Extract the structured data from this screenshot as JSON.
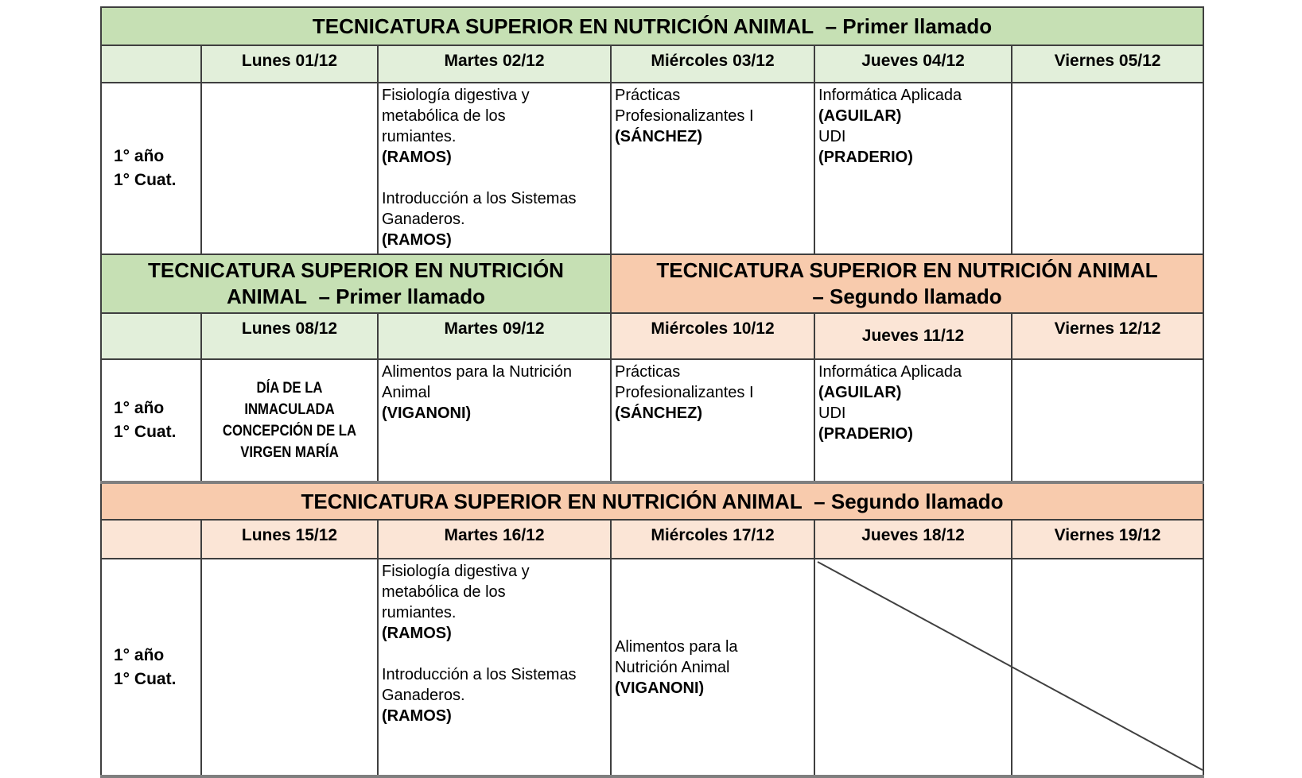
{
  "palette": {
    "page_background": "#ffffff",
    "band_green": "#c6e0b4",
    "header_green": "#e2efda",
    "band_orange": "#f8cbad",
    "header_orange": "#fbe5d6",
    "grid_border": "#3f3f3f",
    "thick_border": "#7f7f7f",
    "diagonal_line": "#404040",
    "text": "#000000"
  },
  "sections": [
    {
      "corner_tone": "green",
      "bands": [
        {
          "tone": "green",
          "span": 6,
          "lines": [
            "TECNICATURA SUPERIOR EN NUTRICIÓN ANIMAL  – Primer llamado"
          ]
        }
      ],
      "days": [
        {
          "label": "Lunes 01/12",
          "tone": "green"
        },
        {
          "label": "Martes 02/12",
          "tone": "green"
        },
        {
          "label": "Miércoles 03/12",
          "tone": "green"
        },
        {
          "label": "Jueves 04/12",
          "tone": "green"
        },
        {
          "label": "Viernes 05/12",
          "tone": "green"
        }
      ],
      "row": {
        "label_lines": [
          "1° año",
          "1° Cuat."
        ],
        "cells": [
          {
            "lines": []
          },
          {
            "lines": [
              {
                "t": "Fisiología digestiva y",
                "b": 0
              },
              {
                "t": "metabólica de los",
                "b": 0
              },
              {
                "t": "rumiantes.",
                "b": 0
              },
              {
                "t": "(RAMOS)",
                "b": 1
              },
              {
                "t": "",
                "b": 0
              },
              {
                "t": "Introducción a los Sistemas",
                "b": 0
              },
              {
                "t": "Ganaderos.",
                "b": 0
              },
              {
                "t": "(RAMOS)",
                "b": 1
              }
            ]
          },
          {
            "lines": [
              {
                "t": "Prácticas",
                "b": 0
              },
              {
                "t": "Profesionalizantes I",
                "b": 0
              },
              {
                "t": "(SÁNCHEZ)",
                "b": 1
              }
            ]
          },
          {
            "lines": [
              {
                "t": "Informática Aplicada",
                "b": 0
              },
              {
                "t": "(AGUILAR)",
                "b": 1
              },
              {
                "t": "UDI",
                "b": 0
              },
              {
                "t": "(PRADERIO)",
                "b": 1
              }
            ]
          },
          {
            "lines": []
          }
        ]
      }
    },
    {
      "corner_tone": "green",
      "bands": [
        {
          "tone": "green",
          "span": 3,
          "lines": [
            "TECNICATURA SUPERIOR EN NUTRICIÓN",
            "ANIMAL  – Primer llamado"
          ]
        },
        {
          "tone": "orange",
          "span": 3,
          "lines": [
            "TECNICATURA SUPERIOR EN NUTRICIÓN ANIMAL",
            "– Segundo llamado"
          ]
        }
      ],
      "days": [
        {
          "label": "Lunes 08/12",
          "tone": "green"
        },
        {
          "label": "Martes 09/12",
          "tone": "green"
        },
        {
          "label": "Miércoles 10/12",
          "tone": "orange"
        },
        {
          "label": "Jueves 11/12",
          "tone": "orange",
          "lower": true
        },
        {
          "label": "Viernes 12/12",
          "tone": "orange"
        }
      ],
      "row": {
        "label_lines": [
          "1° año",
          "1° Cuat."
        ],
        "cells": [
          {
            "center": true,
            "middle": true,
            "small": true,
            "lines": [
              {
                "t": "DÍA DE LA",
                "b": 1
              },
              {
                "t": "INMACULADA",
                "b": 1
              },
              {
                "t": "CONCEPCIÓN DE LA",
                "b": 1
              },
              {
                "t": "VIRGEN MARÍA",
                "b": 1
              }
            ]
          },
          {
            "lines": [
              {
                "t": "Alimentos para la Nutrición",
                "b": 0
              },
              {
                "t": "Animal",
                "b": 0
              },
              {
                "t": "(VIGANONI)",
                "b": 1
              }
            ]
          },
          {
            "lines": [
              {
                "t": "Prácticas",
                "b": 0
              },
              {
                "t": "Profesionalizantes I",
                "b": 0
              },
              {
                "t": "(SÁNCHEZ)",
                "b": 1
              }
            ]
          },
          {
            "lines": [
              {
                "t": "Informática Aplicada",
                "b": 0
              },
              {
                "t": "(AGUILAR)",
                "b": 1
              },
              {
                "t": "UDI",
                "b": 0
              },
              {
                "t": "(PRADERIO)",
                "b": 1
              }
            ]
          },
          {
            "lines": []
          }
        ]
      }
    },
    {
      "corner_tone": "orange",
      "bands": [
        {
          "tone": "orange",
          "span": 6,
          "lines": [
            "TECNICATURA SUPERIOR EN NUTRICIÓN ANIMAL  – Segundo llamado"
          ]
        }
      ],
      "days": [
        {
          "label": "Lunes 15/12",
          "tone": "orange"
        },
        {
          "label": "Martes 16/12",
          "tone": "orange"
        },
        {
          "label": "Miércoles 17/12",
          "tone": "orange"
        },
        {
          "label": "Jueves 18/12",
          "tone": "orange"
        },
        {
          "label": "Viernes 19/12",
          "tone": "orange"
        }
      ],
      "row": {
        "label_lines": [
          "1° año",
          "1° Cuat."
        ],
        "cells": [
          {
            "lines": []
          },
          {
            "lines": [
              {
                "t": "Fisiología digestiva y",
                "b": 0
              },
              {
                "t": "metabólica de los",
                "b": 0
              },
              {
                "t": "rumiantes.",
                "b": 0
              },
              {
                "t": "(RAMOS)",
                "b": 1
              },
              {
                "t": "",
                "b": 0
              },
              {
                "t": "Introducción a los Sistemas",
                "b": 0
              },
              {
                "t": "Ganaderos.",
                "b": 0
              },
              {
                "t": "(RAMOS)",
                "b": 1
              }
            ]
          },
          {
            "middle": true,
            "lines": [
              {
                "t": "Alimentos para la",
                "b": 0
              },
              {
                "t": "Nutrición Animal",
                "b": 0
              },
              {
                "t": "(VIGANONI)",
                "b": 1
              }
            ]
          },
          {
            "lines": [],
            "diagonal": true
          },
          {
            "lines": []
          }
        ]
      }
    }
  ]
}
